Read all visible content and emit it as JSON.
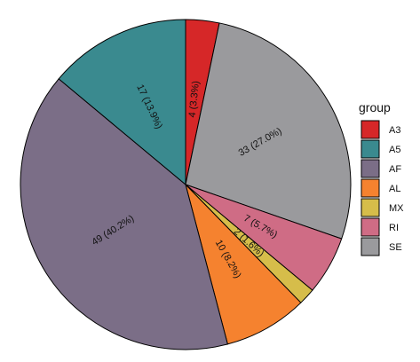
{
  "chart_data": {
    "type": "pie",
    "title": "",
    "legend": {
      "title": "group",
      "placement": "right"
    },
    "start": "12 o'clock",
    "direction": "clockwise",
    "order": [
      "A3",
      "SE",
      "RI",
      "MX",
      "AL",
      "AF",
      "A5"
    ],
    "slices": [
      {
        "name": "A3",
        "value": 4,
        "label": "4 (3.3%)",
        "color": "#d62728"
      },
      {
        "name": "A5",
        "value": 17,
        "label": "17 (13.9%)",
        "color": "#3a8a8f"
      },
      {
        "name": "AF",
        "value": 49,
        "label": "49 (40.2%)",
        "color": "#7b6e87"
      },
      {
        "name": "AL",
        "value": 10,
        "label": "10 (8.2%)",
        "color": "#f5822f"
      },
      {
        "name": "MX",
        "value": 2,
        "label": "2 (1.6%)",
        "color": "#d6bd4a"
      },
      {
        "name": "RI",
        "value": 7,
        "label": "7 (5.7%)",
        "color": "#cf6c85"
      },
      {
        "name": "SE",
        "value": 33,
        "label": "33 (27.0%)",
        "color": "#9a9a9d"
      }
    ]
  }
}
